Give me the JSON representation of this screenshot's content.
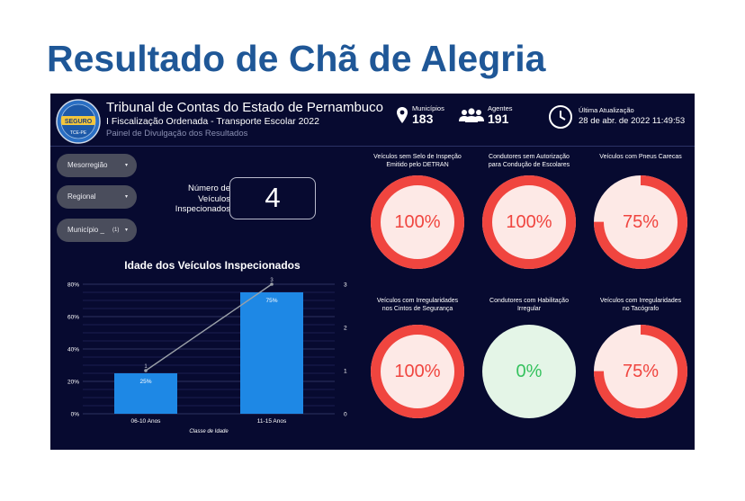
{
  "page_title": "Resultado de Chã de Alegria",
  "header": {
    "org": "Tribunal de Contas do Estado de Pernambuco",
    "subtitle": "I Fiscalização Ordenada - Transporte Escolar 2022",
    "panel": "Painel de Divulgação dos Resultados",
    "logo_text": "SEGURO",
    "logo_text2": "TCE-PE"
  },
  "stats": {
    "municipios_label": "Municípios",
    "municipios_value": "183",
    "agentes_label": "Agentes",
    "agentes_value": "191",
    "atualizacao_label": "Última Atualização",
    "atualizacao_value": "28 de abr. de 2022 11:49:53"
  },
  "filters": [
    {
      "label": "Mesorregião",
      "caret": "▾"
    },
    {
      "label": "Regional",
      "caret": "▾"
    },
    {
      "label": "Município _",
      "count": "(1)",
      "caret": "▾"
    }
  ],
  "kpi": {
    "label_line1": "Número de",
    "label_line2": "Veículos",
    "label_line3": "Inspecionados",
    "value": "4"
  },
  "colors": {
    "bar": "#1e88e5",
    "line": "#9aa0a8",
    "gauge_bad": "#f0453f",
    "gauge_bad_fill": "#fde9e6",
    "gauge_good_fill": "#e4f5e7",
    "gauge_good_text": "#35c25e"
  },
  "chart_data": {
    "type": "bar",
    "title": "Idade dos Veículos Inspecionados",
    "xlabel": "Classe de Idade",
    "categories": [
      "06-10 Anos",
      "11-15 Anos"
    ],
    "series": [
      {
        "type": "bar",
        "values": [
          25,
          75
        ],
        "labels": [
          "25%",
          "75%"
        ],
        "axis": "left"
      },
      {
        "type": "line",
        "values": [
          1,
          3
        ],
        "labels": [
          "1",
          "3"
        ],
        "axis": "right"
      }
    ],
    "y_left": {
      "min": 0,
      "max": 80,
      "ticks": [
        "0%",
        "20%",
        "40%",
        "60%",
        "80%"
      ]
    },
    "y_right": {
      "min": 0,
      "max": 3,
      "ticks": [
        "0",
        "1",
        "2",
        "3"
      ]
    }
  },
  "gauges": [
    {
      "title1": "Veículos sem Selo de Inspeção",
      "title2": "Emitido pelo DETRAN",
      "value": 100,
      "label": "100%"
    },
    {
      "title1": "Condutores sem Autorização",
      "title2": "para Condução de Escolares",
      "value": 100,
      "label": "100%"
    },
    {
      "title1": "Veículos com Pneus Carecas",
      "title2": "",
      "value": 75,
      "label": "75%"
    },
    {
      "title1": "Veículos com Irregularidades",
      "title2": "nos Cintos de Segurança",
      "value": 100,
      "label": "100%"
    },
    {
      "title1": "Condutores com Habilitação",
      "title2": "Irregular",
      "value": 0,
      "label": "0%"
    },
    {
      "title1": "Veículos com Irregularidades",
      "title2": "no Tacógrafo",
      "value": 75,
      "label": "75%"
    }
  ]
}
